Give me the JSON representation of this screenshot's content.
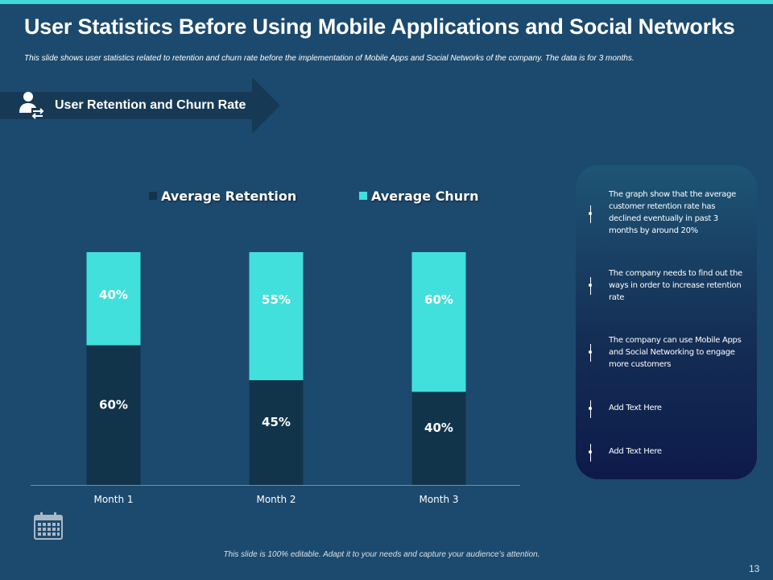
{
  "slide": {
    "title": "User Statistics Before Using Mobile Applications and Social Networks",
    "subtitle": "This slide shows user statistics related to retention and churn rate before the implementation of Mobile Apps and Social Networks of the company. The data is for 3 months.",
    "section_label": "User Retention and Churn Rate",
    "footer": "This slide is 100% editable. Adapt it to your needs and capture your audience’s attention.",
    "page_number": "13"
  },
  "colors": {
    "background": "#1c4a6e",
    "accent": "#3ed9d8",
    "retention": "#12344a",
    "churn": "#42e0dc",
    "banner": "#163a56"
  },
  "icons": {
    "banner": "user-sync-icon",
    "calendar": "calendar-icon",
    "note_marker": "pin-marker-icon"
  },
  "notes": [
    "The graph show that the average customer retention rate has declined eventually in past 3 months by around 20%",
    "The company needs to find out the ways in order to increase retention rate",
    "The company can use Mobile Apps and Social Networking to engage more customers",
    "Add Text Here",
    "Add Text Here"
  ],
  "chart_data": {
    "type": "bar",
    "stacked": true,
    "normalized": true,
    "categories": [
      "Month 1",
      "Month 2",
      "Month 3"
    ],
    "series": [
      {
        "name": "Average Retention",
        "values": [
          60,
          45,
          40
        ],
        "labels": [
          "60%",
          "45%",
          "40%"
        ]
      },
      {
        "name": "Average Churn",
        "values": [
          40,
          55,
          60
        ],
        "labels": [
          "40%",
          "55%",
          "60%"
        ]
      }
    ],
    "ylim": [
      0,
      100
    ],
    "grid": false,
    "legend": "top"
  }
}
